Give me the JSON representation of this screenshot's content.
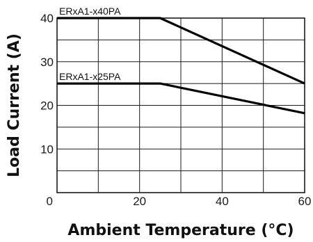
{
  "chart_data": {
    "type": "line",
    "title": "",
    "xlabel": "Ambient Temperature (°C)",
    "ylabel": "Load Current (A)",
    "xlim": [
      0,
      60
    ],
    "ylim": [
      0,
      40
    ],
    "x_ticks": [
      0,
      20,
      40,
      60
    ],
    "y_ticks": [
      10,
      20,
      30,
      40
    ],
    "x_tick_labels": [
      "0",
      "20",
      "40",
      "60"
    ],
    "y_tick_labels": [
      "10",
      "20",
      "30",
      "40"
    ],
    "grid": true,
    "series": [
      {
        "name": "ERxA1-x40PA",
        "x": [
          0,
          25,
          60
        ],
        "y": [
          40,
          40,
          25
        ]
      },
      {
        "name": "ERxA1-x25PA",
        "x": [
          0,
          25,
          60
        ],
        "y": [
          25,
          25,
          18.2
        ]
      }
    ]
  }
}
